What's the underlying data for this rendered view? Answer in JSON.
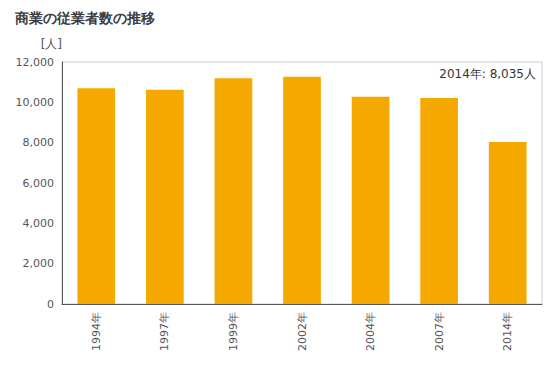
{
  "chart_data": {
    "type": "bar",
    "title": "商業の従業者数の推移",
    "ylabel": "[人]",
    "annotation": "2014年: 8,035人",
    "categories": [
      "1994年",
      "1997年",
      "1999年",
      "2002年",
      "2004年",
      "2007年",
      "2014年"
    ],
    "values": [
      10700,
      10620,
      11200,
      11270,
      10280,
      10210,
      8035
    ],
    "color": "#F5A800",
    "ylim": [
      0,
      12000
    ],
    "yticks": [
      0,
      {
        "value": 2000,
        "label": "2,000"
      },
      {
        "value": 4000,
        "label": "4,000"
      },
      {
        "value": 6000,
        "label": "6,000"
      },
      {
        "value": 8000,
        "label": "8,000"
      },
      {
        "value": 10000,
        "label": "10,000"
      },
      {
        "value": 12000,
        "label": "12,000"
      }
    ],
    "grid": false
  }
}
